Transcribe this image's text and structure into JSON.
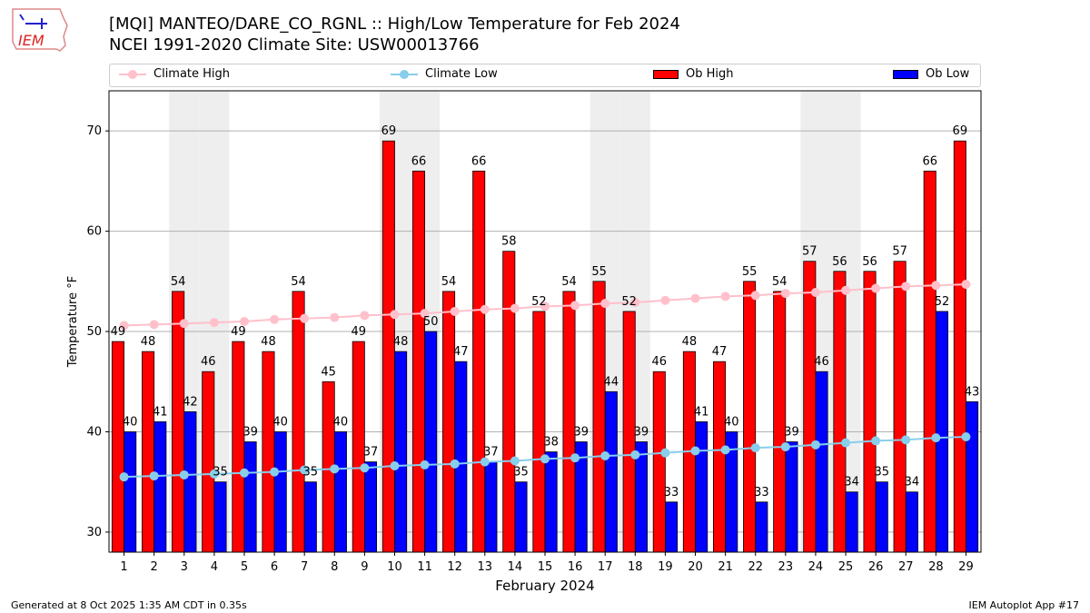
{
  "header": {
    "title_line1": "[MQI] MANTEO/DARE_CO_RGNL :: High/Low Temperature for Feb 2024",
    "title_line2": "NCEI 1991-2020 Climate Site: USW00013766",
    "logo_text": "IEM"
  },
  "footer": {
    "generated": "Generated at 8 Oct 2025 1:35 AM CDT in 0.35s",
    "app": "IEM Autoplot App #17"
  },
  "chart_data": {
    "type": "bar",
    "title": "[MQI] MANTEO/DARE_CO_RGNL :: High/Low Temperature for Feb 2024",
    "subtitle": "NCEI 1991-2020 Climate Site: USW00013766",
    "xlabel": "February 2024",
    "ylabel": "Temperature °F",
    "ylim": [
      28,
      74
    ],
    "yticks": [
      30,
      40,
      50,
      60,
      70
    ],
    "grid": true,
    "legend_placement": "top",
    "categories": [
      "1",
      "2",
      "3",
      "4",
      "5",
      "6",
      "7",
      "8",
      "9",
      "10",
      "11",
      "12",
      "13",
      "14",
      "15",
      "16",
      "17",
      "18",
      "19",
      "20",
      "21",
      "22",
      "23",
      "24",
      "25",
      "26",
      "27",
      "28",
      "29"
    ],
    "weekend_shaded_days": [
      3,
      4,
      10,
      11,
      17,
      18,
      24,
      25
    ],
    "series": [
      {
        "name": "Climate High",
        "type": "line",
        "color": "#FFC0CB",
        "values": [
          50.6,
          50.7,
          50.8,
          50.9,
          51.0,
          51.2,
          51.3,
          51.4,
          51.6,
          51.7,
          51.8,
          52.0,
          52.2,
          52.3,
          52.5,
          52.6,
          52.8,
          52.9,
          53.1,
          53.3,
          53.5,
          53.6,
          53.8,
          53.9,
          54.1,
          54.3,
          54.5,
          54.6,
          54.7
        ]
      },
      {
        "name": "Climate Low",
        "type": "line",
        "color": "#87CEEB",
        "values": [
          35.5,
          35.6,
          35.7,
          35.8,
          35.9,
          36.0,
          36.2,
          36.3,
          36.4,
          36.6,
          36.7,
          36.8,
          37.0,
          37.1,
          37.3,
          37.4,
          37.6,
          37.7,
          37.9,
          38.1,
          38.2,
          38.4,
          38.5,
          38.7,
          38.9,
          39.1,
          39.2,
          39.4,
          39.5
        ]
      },
      {
        "name": "Ob High",
        "type": "bar",
        "color": "#FF0000",
        "values": [
          49,
          48,
          54,
          46,
          49,
          48,
          54,
          45,
          49,
          69,
          66,
          54,
          66,
          58,
          52,
          54,
          55,
          52,
          46,
          48,
          47,
          55,
          54,
          57,
          56,
          56,
          57,
          66,
          69
        ]
      },
      {
        "name": "Ob Low",
        "type": "bar",
        "color": "#0000FF",
        "values": [
          40,
          41,
          42,
          35,
          39,
          40,
          35,
          40,
          37,
          48,
          50,
          47,
          37,
          35,
          38,
          39,
          44,
          39,
          33,
          41,
          40,
          33,
          39,
          46,
          34,
          35,
          34,
          52,
          43
        ]
      }
    ]
  }
}
